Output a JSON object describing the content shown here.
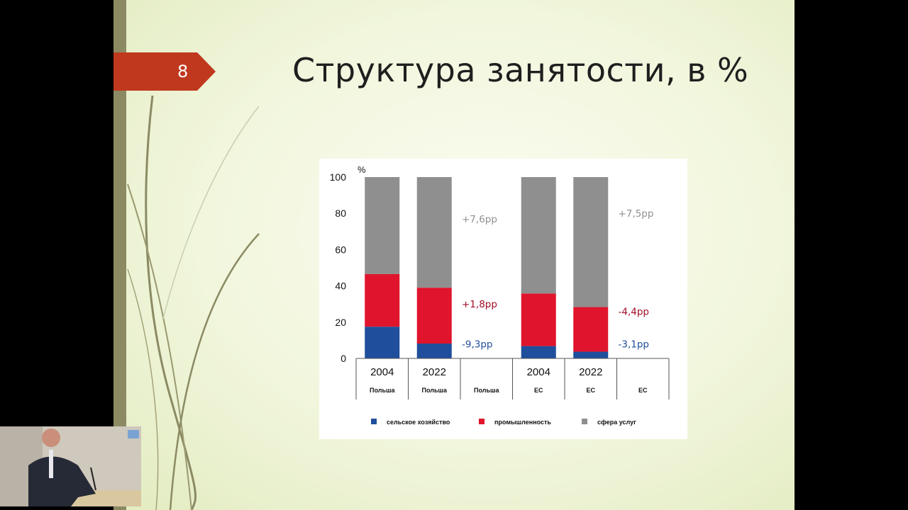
{
  "slide": {
    "number": "8",
    "title": "Структура занятости, в %"
  },
  "colors": {
    "agriculture": "#1f4e9c",
    "industry": "#e0142c",
    "services": "#8f8f8f",
    "badge": "#c0391e"
  },
  "chart_data": {
    "type": "bar",
    "stacked": true,
    "ylabel": "%",
    "ylim": [
      0,
      100
    ],
    "yticks": [
      0,
      20,
      40,
      60,
      80,
      100
    ],
    "categories": [
      {
        "year": "2004",
        "region": "Польша"
      },
      {
        "year": "2022",
        "region": "Польша"
      },
      {
        "year": "",
        "region": "Польша"
      },
      {
        "year": "2004",
        "region": "ЕС"
      },
      {
        "year": "2022",
        "region": "ЕС"
      },
      {
        "year": "",
        "region": "ЕС"
      }
    ],
    "series": [
      {
        "name": "сельское хозяйство",
        "color": "#1f4e9c",
        "values": [
          17.5,
          8.2,
          null,
          6.8,
          3.7,
          null
        ]
      },
      {
        "name": "промышленность",
        "color": "#e0142c",
        "values": [
          29.0,
          30.8,
          null,
          29.0,
          24.6,
          null
        ]
      },
      {
        "name": "сфера услуг",
        "color": "#8f8f8f",
        "values": [
          53.5,
          61.0,
          null,
          64.2,
          71.7,
          null
        ]
      }
    ],
    "annotations": [
      {
        "category": 2,
        "series": "сфера услуг",
        "text": "+7,6pp",
        "color": "#8f8f8f",
        "y": 77
      },
      {
        "category": 2,
        "series": "промышленность",
        "text": "+1,8pp",
        "color": "#a00d25",
        "y": 30
      },
      {
        "category": 2,
        "series": "сельское хозяйство",
        "text": "-9,3pp",
        "color": "#1f4e9c",
        "y": 8
      },
      {
        "category": 5,
        "series": "сфера услуг",
        "text": "+7,5pp",
        "color": "#8f8f8f",
        "y": 80
      },
      {
        "category": 5,
        "series": "промышленность",
        "text": "-4,4pp",
        "color": "#a00d25",
        "y": 26
      },
      {
        "category": 5,
        "series": "сельское хозяйство",
        "text": "-3,1pp",
        "color": "#1f4e9c",
        "y": 8
      }
    ],
    "legend": {
      "position": "bottom"
    }
  }
}
